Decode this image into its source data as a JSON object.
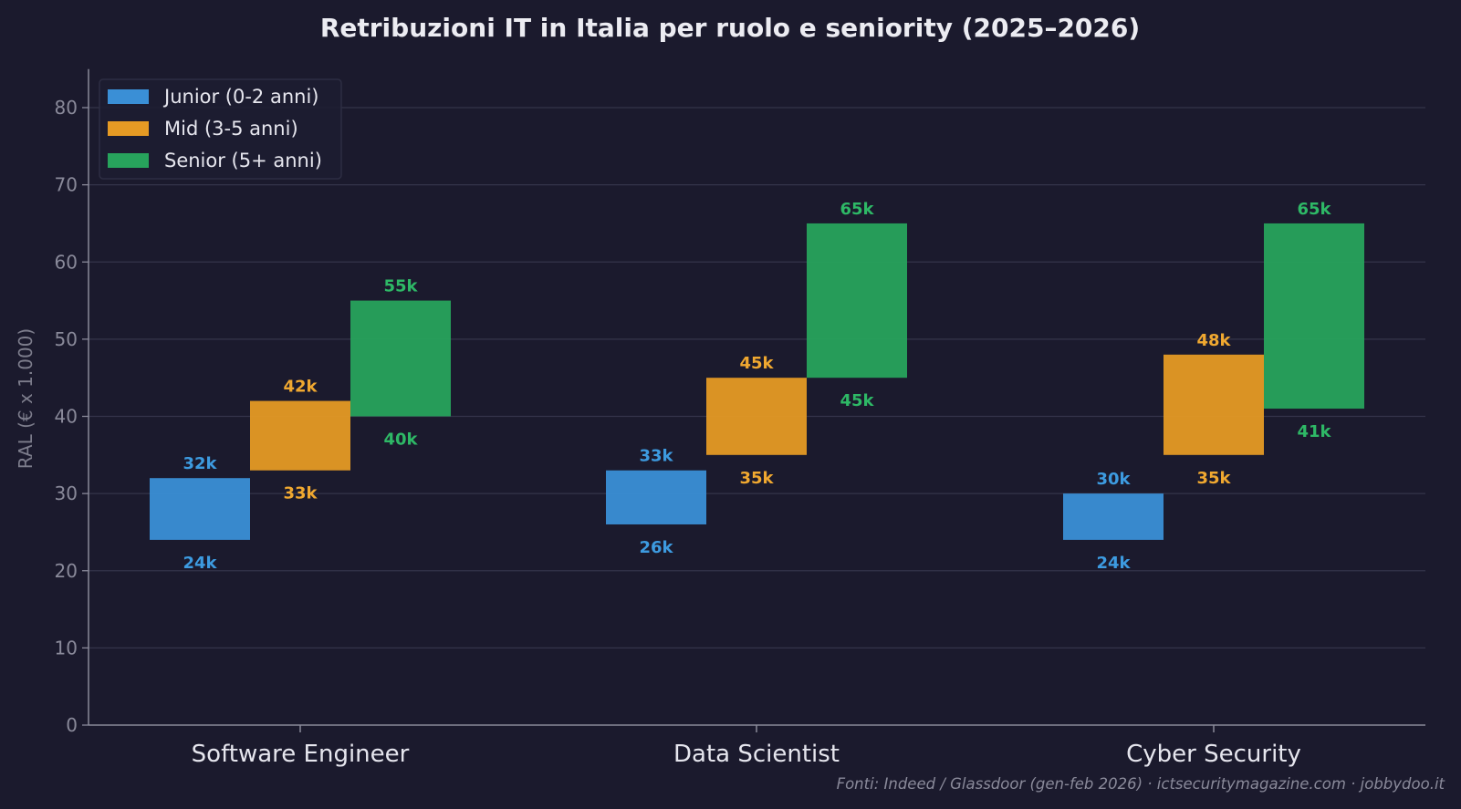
{
  "chart_data": {
    "type": "bar",
    "subtype": "floating-range",
    "title": "Retribuzioni IT in Italia per ruolo e seniority (2025–2026)",
    "ylabel": "RAL (€ x 1.000)",
    "xlabel": "",
    "ylim": [
      0,
      85
    ],
    "yticks": [
      0,
      10,
      20,
      30,
      40,
      50,
      60,
      70,
      80
    ],
    "grid": true,
    "legend_position": "top-left",
    "categories": [
      "Software Engineer",
      "Data Scientist",
      "Cyber Security"
    ],
    "series": [
      {
        "name": "Junior (0-2 anni)",
        "color": "#3a8fd6",
        "label_color": "#3d9be0",
        "low": [
          24,
          26,
          24
        ],
        "high": [
          32,
          33,
          30
        ],
        "low_labels": [
          "24k",
          "26k",
          "24k"
        ],
        "high_labels": [
          "32k",
          "33k",
          "30k"
        ]
      },
      {
        "name": "Mid (3-5 anni)",
        "color": "#e59a24",
        "label_color": "#f0a830",
        "low": [
          33,
          35,
          35
        ],
        "high": [
          42,
          45,
          48
        ],
        "low_labels": [
          "33k",
          "35k",
          "35k"
        ],
        "high_labels": [
          "42k",
          "45k",
          "48k"
        ]
      },
      {
        "name": "Senior (5+ anni)",
        "color": "#27a35c",
        "label_color": "#2eb866",
        "low": [
          40,
          45,
          41
        ],
        "high": [
          55,
          65,
          65
        ],
        "low_labels": [
          "40k",
          "45k",
          "41k"
        ],
        "high_labels": [
          "55k",
          "65k",
          "65k"
        ]
      }
    ],
    "footnote": "Fonti: Indeed / Glassdoor (gen-feb 2026) · ictsecuritymagazine.com · jobbydoo.it"
  },
  "colors": {
    "background": "#1b1a2d",
    "grid": "#34344a",
    "axis": "#8a8a9a"
  }
}
